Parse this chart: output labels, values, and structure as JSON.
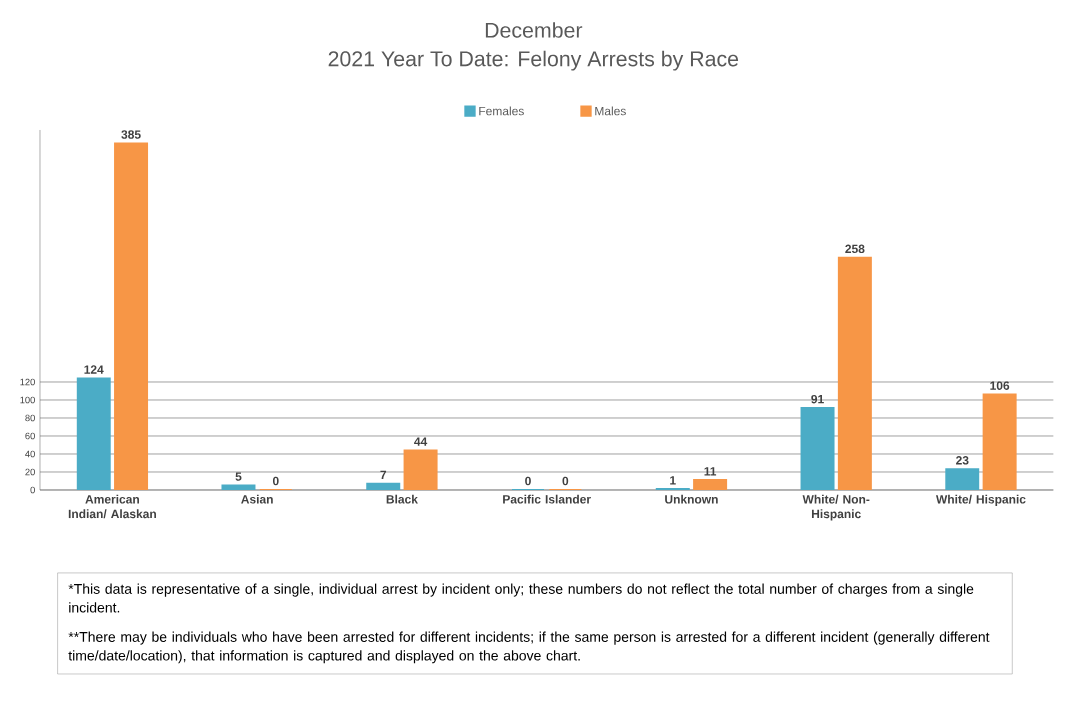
{
  "chart_data": {
    "type": "bar",
    "title": "December",
    "subtitle": "2021 Year To Date: Felony Arrests by Race",
    "categories": [
      "American Indian/ Alaskan",
      "Asian",
      "Black",
      "Pacific Islander",
      "Unknown",
      "White/ Non-Hispanic",
      "White/ Hispanic"
    ],
    "series": [
      {
        "name": "Females",
        "color": "#4bacc6",
        "values": [
          124,
          5,
          7,
          0,
          1,
          91,
          23
        ]
      },
      {
        "name": "Males",
        "color": "#f79646",
        "values": [
          385,
          0,
          44,
          0,
          11,
          258,
          106
        ]
      }
    ],
    "ylim": [
      0,
      400
    ],
    "yticks": [
      0,
      20,
      40,
      60,
      80,
      100,
      120
    ],
    "grid": "y",
    "legend": "top",
    "data_labels": true,
    "annotations": [
      "*This data is representative of a single, individual arrest by incident only; these numbers do not reflect the total number of charges from a single incident.",
      "**There may be individuals who have been arrested for different incidents; if the same person is arrested for a different incident (generally different time/date/location), that information is captured and displayed on the above chart."
    ]
  }
}
